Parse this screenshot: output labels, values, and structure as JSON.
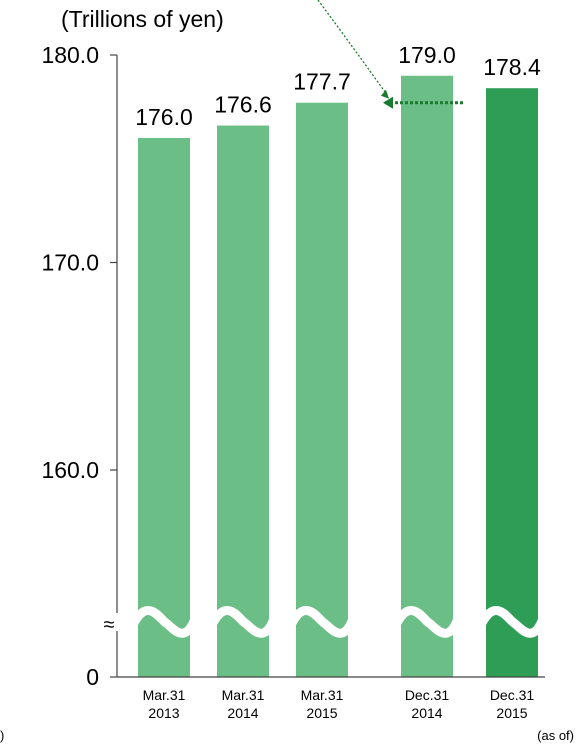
{
  "chart_data": {
    "type": "bar",
    "unit_label": "(Trillions of yen)",
    "as_of_label": "(as of)",
    "left_edge_label": ")",
    "axis_break": true,
    "y_ticks": [
      "180.0",
      "170.0",
      "160.0",
      "0"
    ],
    "y_break_symbol": "≈",
    "categories": [
      {
        "line1": "Mar.31",
        "line2": "2013"
      },
      {
        "line1": "Mar.31",
        "line2": "2014"
      },
      {
        "line1": "Mar.31",
        "line2": "2015"
      },
      {
        "line1": "Dec.31",
        "line2": "2014"
      },
      {
        "line1": "Dec.31",
        "line2": "2015"
      }
    ],
    "values": [
      176.0,
      176.6,
      177.7,
      179.0,
      178.4
    ],
    "value_labels": [
      "176.0",
      "176.6",
      "177.7",
      "179.0",
      "178.4"
    ],
    "colors": [
      "#6bbf86",
      "#6bbf86",
      "#6bbf86",
      "#6bbf86",
      "#2e9e56"
    ],
    "reference_line": {
      "from_category": 2,
      "to_category": 3,
      "value": 177.7,
      "color": "#1a7a2e"
    }
  }
}
